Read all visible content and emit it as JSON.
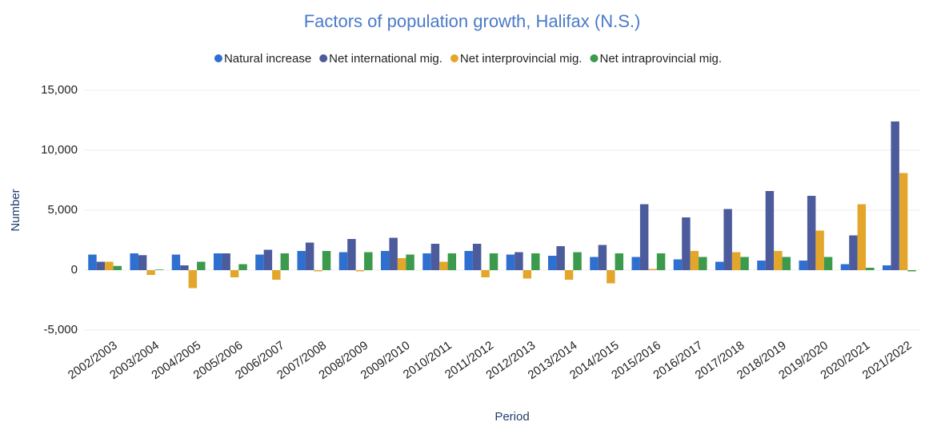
{
  "chart_data": {
    "type": "bar",
    "title": "Factors of population growth, Halifax (N.S.)",
    "y_label": "Number",
    "x_label": "Period",
    "categories": [
      "2002/2003",
      "2003/2004",
      "2004/2005",
      "2005/2006",
      "2006/2007",
      "2007/2008",
      "2008/2009",
      "2009/2010",
      "2010/2011",
      "2011/2012",
      "2012/2013",
      "2013/2014",
      "2014/2015",
      "2015/2016",
      "2016/2017",
      "2017/2018",
      "2018/2019",
      "2019/2020",
      "2020/2021",
      "2021/2022"
    ],
    "series": [
      {
        "name": "Natural increase",
        "color": "#2f6fcf",
        "values": [
          1300,
          1400,
          1300,
          1400,
          1300,
          1600,
          1500,
          1600,
          1400,
          1600,
          1300,
          1200,
          1100,
          1100,
          900,
          700,
          800,
          800,
          500,
          400
        ]
      },
      {
        "name": "Net international mig.",
        "color": "#4b5b9b",
        "values": [
          700,
          1250,
          400,
          1400,
          1700,
          2300,
          2600,
          2700,
          2200,
          2200,
          1500,
          2000,
          2100,
          5500,
          4400,
          5100,
          6600,
          6200,
          2900,
          12400
        ]
      },
      {
        "name": "Net interprovincial mig.",
        "color": "#e3a62a",
        "values": [
          700,
          -400,
          -1500,
          -600,
          -800,
          -100,
          -100,
          1000,
          700,
          -600,
          -700,
          -800,
          -1100,
          100,
          1600,
          1500,
          1600,
          3300,
          5500,
          8100
        ]
      },
      {
        "name": "Net intraprovincial mig.",
        "color": "#3b9a4b",
        "values": [
          350,
          50,
          700,
          500,
          1400,
          1600,
          1500,
          1300,
          1400,
          1400,
          1400,
          1500,
          1400,
          1400,
          1100,
          1100,
          1100,
          1100,
          200,
          -100
        ]
      }
    ],
    "ylim": [
      -5000,
      15000
    ],
    "yticks": [
      {
        "value": -5000,
        "label": "-5,000"
      },
      0,
      {
        "value": 5000,
        "label": "5,000"
      },
      {
        "value": 10000,
        "label": "10,000"
      },
      {
        "value": 15000,
        "label": "15,000"
      }
    ],
    "grid": true
  }
}
